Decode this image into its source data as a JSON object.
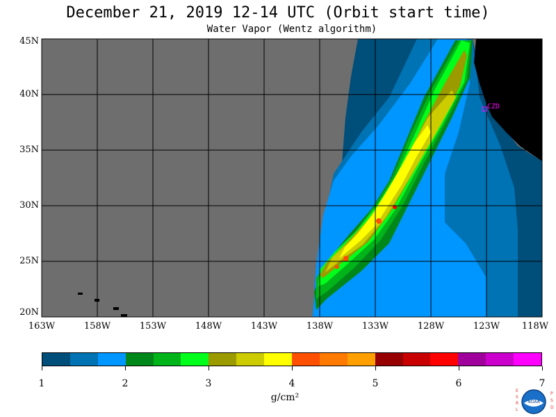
{
  "header": {
    "title": "December 21, 2019  12-14 UTC  (Orbit start time)",
    "subtitle": "Water Vapor (Wentz algorithm)"
  },
  "map": {
    "lat_labels": [
      "45N",
      "40N",
      "35N",
      "30N",
      "25N",
      "20N"
    ],
    "lon_labels": [
      "163W",
      "158W",
      "153W",
      "148W",
      "143W",
      "138W",
      "133W",
      "128W",
      "123W",
      "118W"
    ],
    "station_label": "CZD",
    "colors": {
      "no_data": "#6e6e6e",
      "land": "#000000",
      "station": "#ff00ff",
      "grid": "#000000"
    }
  },
  "colorbar": {
    "colors": [
      "#004e7a",
      "#0073b4",
      "#0096ff",
      "#00871a",
      "#00b41a",
      "#00ff1a",
      "#9b9b00",
      "#cccc00",
      "#ffff00",
      "#ff5000",
      "#ff7a00",
      "#ffa000",
      "#960000",
      "#c80000",
      "#ff0000",
      "#a0009b",
      "#cc00cc",
      "#ff00ff"
    ],
    "labels": [
      "1",
      "2",
      "3",
      "4",
      "5",
      "6",
      "7"
    ],
    "unit": "g/cm²"
  },
  "logo": {
    "left_text": "ESRL",
    "right_text": "PSD",
    "center_text": "NOAA"
  }
}
